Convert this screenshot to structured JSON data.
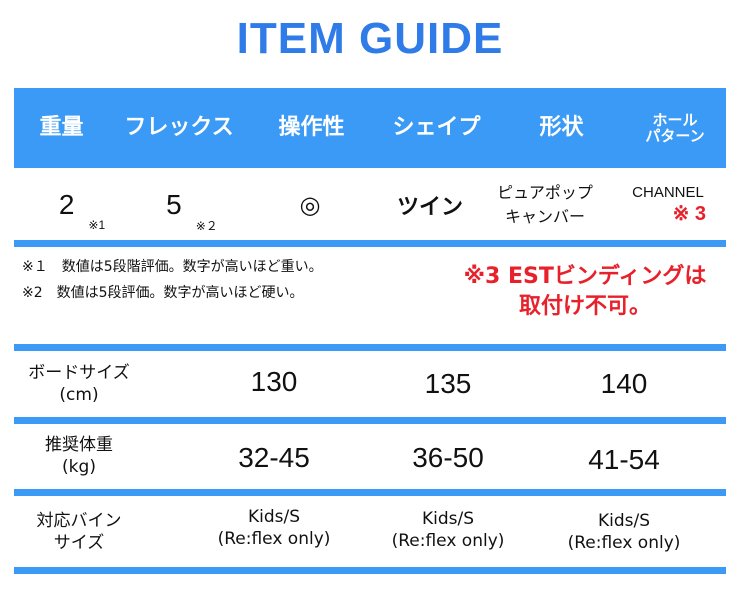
{
  "title": "ITEM GUIDE",
  "header": [
    "重量",
    "フレックス",
    "操作性",
    "シェイプ",
    "形状",
    "ホール\nパターン"
  ],
  "spec": {
    "weight": "2",
    "weight_note": "※1",
    "flex": "5",
    "flex_note": "※２",
    "control": "◎",
    "shape": "ツイン",
    "profile_line1": "ピュアポップ",
    "profile_line2": "キャンバー",
    "hole": "CHANNEL",
    "hole_note": "※ 3"
  },
  "notes": [
    "※１　数値は5段階評価。数字が高いほど重い。",
    "※2　数値は5段評価。数字が高いほど硬い。"
  ],
  "warning": [
    "※3 ESTビンディングは",
    "取付け不可。"
  ],
  "sizes": {
    "rows": [
      {
        "label": [
          "ボードサイズ",
          "(cm)"
        ],
        "values": [
          "130",
          "135",
          "140"
        ]
      },
      {
        "label": [
          "推奨体重",
          "(kg)"
        ],
        "values": [
          "32-45",
          "36-50",
          "41-54"
        ]
      },
      {
        "label": [
          "対応バイン",
          "サイズ"
        ],
        "values": [
          [
            "Kids/S",
            "(Re:flex only)"
          ],
          [
            "Kids/S",
            "(Re:flex only)"
          ],
          [
            "Kids/S",
            "(Re:flex only)"
          ]
        ]
      }
    ]
  },
  "colors": {
    "accent": "#3a9af5",
    "title": "#2f7ce8",
    "warning": "#e8202a"
  }
}
